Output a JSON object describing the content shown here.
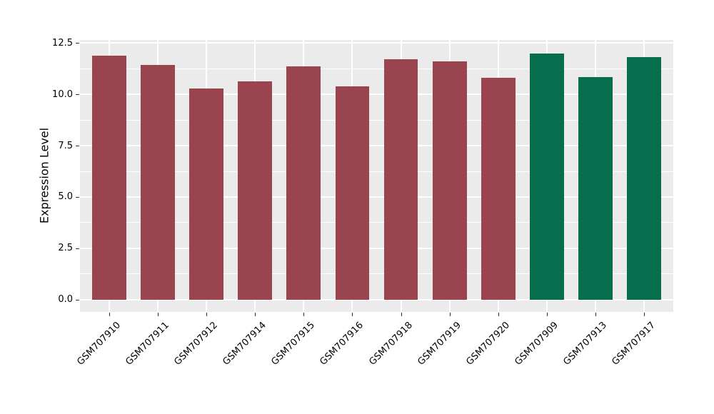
{
  "chart_data": {
    "type": "bar",
    "title": "",
    "ylabel": "Expression Level",
    "xlabel": "",
    "categories": [
      "GSM707910",
      "GSM707911",
      "GSM707912",
      "GSM707914",
      "GSM707915",
      "GSM707916",
      "GSM707918",
      "GSM707919",
      "GSM707920",
      "GSM707909",
      "GSM707913",
      "GSM707917"
    ],
    "values": [
      11.9,
      11.45,
      10.3,
      10.65,
      11.35,
      10.4,
      11.7,
      11.6,
      10.8,
      12.0,
      10.85,
      11.8
    ],
    "bar_colors": [
      "#9A4450",
      "#9A4450",
      "#9A4450",
      "#9A4450",
      "#9A4450",
      "#9A4450",
      "#9A4450",
      "#9A4450",
      "#9A4450",
      "#066E4C",
      "#066E4C",
      "#066E4C"
    ],
    "palette": {
      "maroon_group": "#9A4450",
      "green_group": "#066E4C"
    },
    "yticks": {
      "values": [
        0,
        2.5,
        5,
        7.5,
        10,
        12.5
      ],
      "labels": [
        "0.0",
        "2.5",
        "5.0",
        "7.5",
        "10.0",
        "12.5"
      ]
    },
    "minor_yticks": [
      1.25,
      3.75,
      6.25,
      8.75,
      11.25
    ],
    "ylim": [
      -0.6,
      12.65
    ],
    "bar_width_fraction": 0.7,
    "category_edge_padding": 0.6,
    "grid": "on",
    "legend": "none",
    "panel_bg": "#EBEBEB",
    "grid_color": "#FFFFFF",
    "text_color": "#000000"
  }
}
